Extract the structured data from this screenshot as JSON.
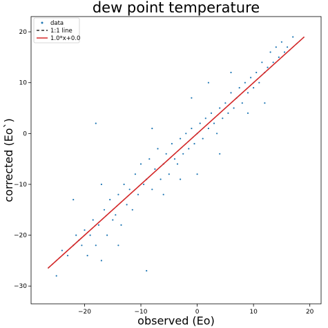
{
  "chart_data": {
    "type": "scatter",
    "title": "dew point temperature",
    "xlabel": "observed (Eo)",
    "ylabel": "corrected (Eo`)",
    "xlim": [
      -29.5,
      22
    ],
    "ylim": [
      -33.5,
      23
    ],
    "xticks": [
      -20,
      -10,
      0,
      10,
      20
    ],
    "yticks": [
      -30,
      -20,
      -10,
      0,
      10,
      20
    ],
    "xtick_labels": [
      "−20",
      "−10",
      "0",
      "10",
      "20"
    ],
    "ytick_labels": [
      "−30",
      "−20",
      "−10",
      "0",
      "10",
      "20"
    ],
    "grid": false,
    "legend_position": "top-left",
    "series": [
      {
        "name": "data",
        "kind": "scatter",
        "color": "#1f77b4",
        "points": [
          [
            -25,
            -28
          ],
          [
            -24,
            -23
          ],
          [
            -23,
            -24
          ],
          [
            -22,
            -22
          ],
          [
            -21.5,
            -20
          ],
          [
            -21,
            -21
          ],
          [
            -20.5,
            -22
          ],
          [
            -20,
            -19
          ],
          [
            -19.5,
            -24
          ],
          [
            -19,
            -20
          ],
          [
            -18.5,
            -17
          ],
          [
            -18,
            -22
          ],
          [
            -17.5,
            -18
          ],
          [
            -17,
            -25
          ],
          [
            -16.5,
            -15
          ],
          [
            -16,
            -20
          ],
          [
            -15.5,
            -13
          ],
          [
            -15,
            -17
          ],
          [
            -14.5,
            -16
          ],
          [
            -14,
            -12
          ],
          [
            -13.5,
            -18
          ],
          [
            -13,
            -10
          ],
          [
            -12.5,
            -14
          ],
          [
            -12,
            -11
          ],
          [
            -11.5,
            -15
          ],
          [
            -11,
            -8
          ],
          [
            -10.5,
            -12
          ],
          [
            -10,
            -6
          ],
          [
            -9.5,
            -10
          ],
          [
            -9,
            -9
          ],
          [
            -8.5,
            -5
          ],
          [
            -8,
            -11
          ],
          [
            -7.5,
            -7
          ],
          [
            -7,
            -3
          ],
          [
            -6.5,
            -9
          ],
          [
            -6,
            -6
          ],
          [
            -5.5,
            -4
          ],
          [
            -5,
            -8
          ],
          [
            -4.5,
            -2
          ],
          [
            -4,
            -5
          ],
          [
            -3.5,
            -6
          ],
          [
            -3,
            -1
          ],
          [
            -2.5,
            -4
          ],
          [
            -2,
            0
          ],
          [
            -1.5,
            -3
          ],
          [
            -1,
            1
          ],
          [
            -0.5,
            -2
          ],
          [
            0,
            0
          ],
          [
            0.5,
            2
          ],
          [
            1,
            -1
          ],
          [
            1.5,
            3
          ],
          [
            2,
            1
          ],
          [
            2.5,
            4
          ],
          [
            3,
            2
          ],
          [
            3.5,
            0
          ],
          [
            4,
            5
          ],
          [
            4.5,
            3
          ],
          [
            5,
            6
          ],
          [
            5.5,
            4
          ],
          [
            6,
            8
          ],
          [
            6.5,
            5
          ],
          [
            7,
            7
          ],
          [
            7.5,
            9
          ],
          [
            8,
            6
          ],
          [
            8.5,
            10
          ],
          [
            9,
            8
          ],
          [
            9.5,
            11
          ],
          [
            10,
            9
          ],
          [
            10.5,
            12
          ],
          [
            11,
            10
          ],
          [
            11.5,
            14
          ],
          [
            12,
            12
          ],
          [
            12.5,
            13
          ],
          [
            13,
            16
          ],
          [
            13.5,
            14
          ],
          [
            14,
            17
          ],
          [
            14.5,
            15
          ],
          [
            15,
            18
          ],
          [
            15.5,
            16
          ],
          [
            16,
            17
          ],
          [
            17,
            19
          ],
          [
            -18,
            2
          ],
          [
            -22,
            -13
          ],
          [
            -9,
            -27
          ],
          [
            -1,
            7
          ],
          [
            2,
            10
          ],
          [
            -6,
            -12
          ],
          [
            9,
            4
          ],
          [
            -14,
            -22
          ],
          [
            4,
            -4
          ],
          [
            -8,
            1
          ],
          [
            12,
            6
          ],
          [
            -3,
            -9
          ],
          [
            6,
            12
          ],
          [
            -17,
            -10
          ],
          [
            0,
            -8
          ]
        ]
      },
      {
        "name": "1:1 line",
        "kind": "line",
        "color": "#000000",
        "dash": "4,3",
        "x": [
          -26.5,
          19
        ],
        "y": [
          -26.5,
          19
        ]
      },
      {
        "name": "1.0*x+0.0",
        "kind": "line",
        "color": "#d62728",
        "x": [
          -26.5,
          19
        ],
        "y": [
          -26.5,
          19
        ]
      }
    ]
  }
}
